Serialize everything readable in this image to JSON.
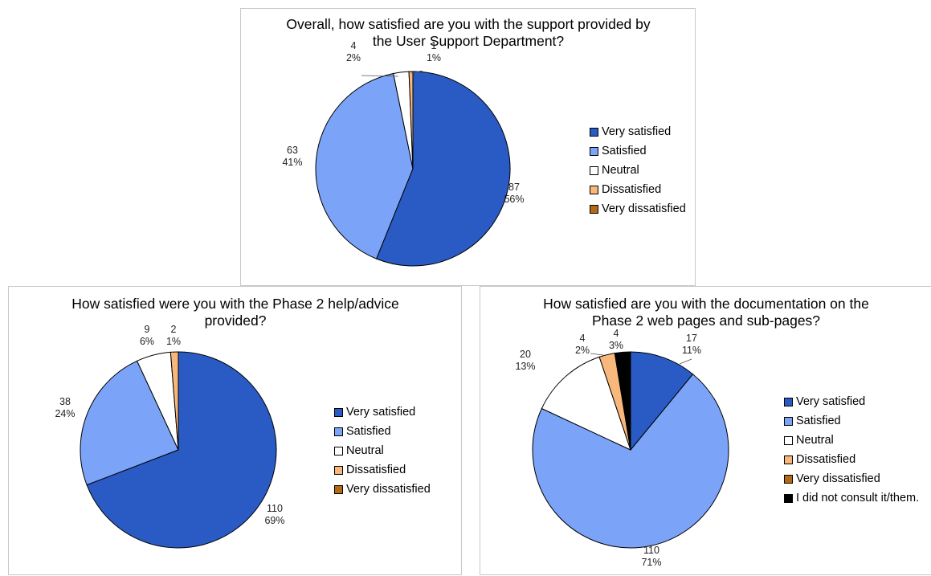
{
  "colors": {
    "Very satisfied": "#2a5bc4",
    "Satisfied": "#7ba3f7",
    "Neutral": "#ffffff",
    "Dissatisfied": "#f9b87b",
    "Very dissatisfied": "#b26b14",
    "I did not consult it/them.": "#000000"
  },
  "chart_data": [
    {
      "type": "pie",
      "title": "Overall, how satisfied are you with the support provided by the User Support Department?",
      "categories": [
        "Very satisfied",
        "Satisfied",
        "Neutral",
        "Dissatisfied",
        "Very dissatisfied"
      ],
      "values": [
        87,
        63,
        4,
        1,
        0
      ],
      "percent_labels": [
        "56%",
        "41%",
        "2%",
        "1%",
        ""
      ],
      "legend": [
        "Very satisfied",
        "Satisfied",
        "Neutral",
        "Dissatisfied",
        "Very dissatisfied"
      ],
      "legend_position": "right"
    },
    {
      "type": "pie",
      "title": "How satisfied were you with the Phase 2 help/advice provided?",
      "categories": [
        "Very satisfied",
        "Satisfied",
        "Neutral",
        "Dissatisfied",
        "Very dissatisfied"
      ],
      "values": [
        110,
        38,
        9,
        2,
        0
      ],
      "percent_labels": [
        "69%",
        "24%",
        "6%",
        "1%",
        ""
      ],
      "legend": [
        "Very satisfied",
        "Satisfied",
        "Neutral",
        "Dissatisfied",
        "Very dissatisfied"
      ],
      "legend_position": "right"
    },
    {
      "type": "pie",
      "title": "How satisfied are you with the documentation on the Phase 2 web pages and sub-pages?",
      "categories": [
        "Very satisfied",
        "Satisfied",
        "Neutral",
        "Dissatisfied",
        "Very dissatisfied",
        "I did not consult it/them."
      ],
      "values": [
        17,
        110,
        20,
        4,
        0,
        4
      ],
      "percent_labels": [
        "11%",
        "71%",
        "13%",
        "2%",
        "",
        "3%"
      ],
      "legend": [
        "Very satisfied",
        "Satisfied",
        "Neutral",
        "Dissatisfied",
        "Very dissatisfied",
        "I did not consult it/them."
      ],
      "legend_position": "right"
    }
  ]
}
